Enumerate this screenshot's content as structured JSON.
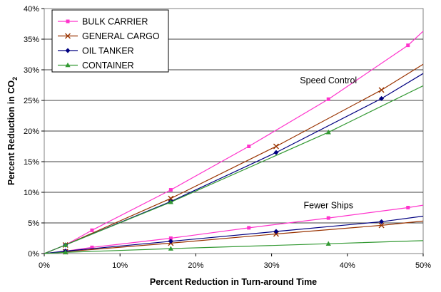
{
  "chart_data": {
    "type": "line",
    "xlabel": "Percent Reduction in Turn-around Time",
    "ylabel_main": "Percent Reduction in CO",
    "ylabel_sub": "2",
    "xlim": [
      0,
      50
    ],
    "ylim": [
      0,
      40
    ],
    "x_ticks": [
      0,
      10,
      20,
      30,
      40,
      50
    ],
    "x_tick_labels": [
      "0%",
      "10%",
      "20%",
      "30%",
      "40%",
      "50%"
    ],
    "y_ticks": [
      0,
      5,
      10,
      15,
      20,
      25,
      30,
      35,
      40
    ],
    "y_tick_labels": [
      "0%",
      "5%",
      "10%",
      "15%",
      "20%",
      "25%",
      "30%",
      "35%",
      "40%"
    ],
    "grid": "horizontal",
    "legend_position": "top-left",
    "annotations": [
      {
        "text": "Speed Control",
        "x": 37.5,
        "y": 27.8
      },
      {
        "text": "Fewer Ships",
        "x": 37.5,
        "y": 7.4
      }
    ],
    "series": [
      {
        "name": "BULK CARRIER",
        "color": "#ff33cc",
        "marker": "square",
        "groups": [
          {
            "label": "Speed Control",
            "x": [
              0,
              2.8,
              6.3,
              16.7,
              27.0,
              37.5,
              48.0,
              50
            ],
            "y": [
              0,
              1.4,
              3.8,
              10.4,
              17.5,
              25.2,
              34.0,
              36.3
            ]
          },
          {
            "label": "Fewer Ships",
            "x": [
              0,
              2.8,
              6.3,
              16.7,
              27.0,
              37.5,
              48.0,
              50
            ],
            "y": [
              0,
              0.4,
              1.0,
              2.5,
              4.2,
              5.8,
              7.5,
              7.9
            ]
          }
        ]
      },
      {
        "name": "GENERAL CARGO",
        "color": "#993300",
        "marker": "x",
        "groups": [
          {
            "label": "Speed Control",
            "x": [
              0,
              2.8,
              16.7,
              30.6,
              44.5,
              50
            ],
            "y": [
              0,
              1.4,
              9.0,
              17.5,
              26.7,
              30.9
            ]
          },
          {
            "label": "Fewer Ships",
            "x": [
              0,
              2.8,
              16.7,
              30.6,
              44.5,
              50
            ],
            "y": [
              0,
              0.3,
              1.7,
              3.2,
              4.6,
              5.3
            ]
          }
        ]
      },
      {
        "name": "OIL TANKER",
        "color": "#000080",
        "marker": "diamond",
        "groups": [
          {
            "label": "Speed Control",
            "x": [
              0,
              2.8,
              16.7,
              30.6,
              44.5,
              50
            ],
            "y": [
              0,
              1.4,
              8.5,
              16.5,
              25.3,
              29.4
            ]
          },
          {
            "label": "Fewer Ships",
            "x": [
              0,
              2.8,
              16.7,
              30.6,
              44.5,
              50
            ],
            "y": [
              0,
              0.4,
              2.0,
              3.6,
              5.2,
              6.1
            ]
          }
        ]
      },
      {
        "name": "CONTAINER",
        "color": "#339933",
        "marker": "triangle",
        "groups": [
          {
            "label": "Speed Control",
            "x": [
              0,
              2.8,
              16.7,
              37.5,
              50
            ],
            "y": [
              0,
              1.4,
              8.4,
              19.8,
              27.4
            ]
          },
          {
            "label": "Fewer Ships",
            "x": [
              0,
              2.8,
              16.7,
              37.5,
              50
            ],
            "y": [
              0,
              0.2,
              0.8,
              1.6,
              2.1
            ]
          }
        ]
      }
    ]
  }
}
